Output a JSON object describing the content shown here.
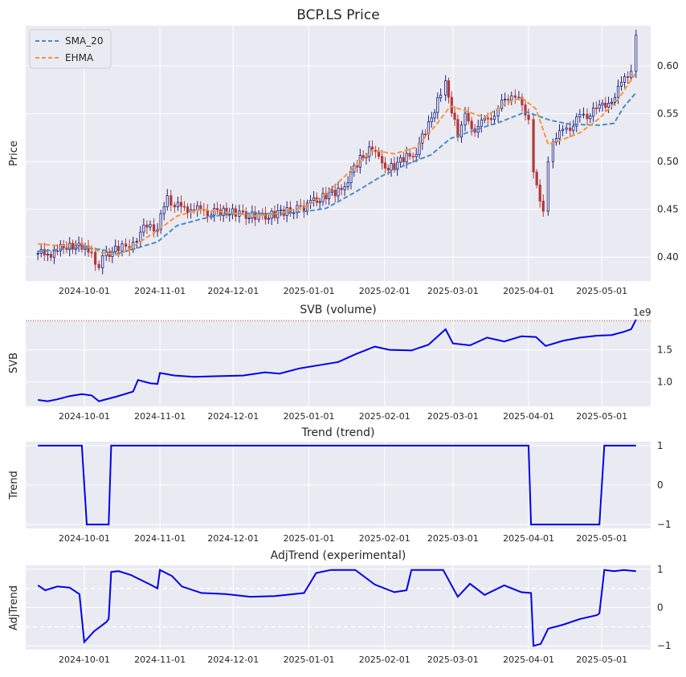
{
  "figure": {
    "colors": {
      "axes_bg": "#eaeaf2",
      "grid": "#ffffff",
      "sma": "#4c8cc4",
      "ehma": "#f7953e",
      "line": "#0000ee",
      "up": "#1a237e",
      "down": "#b0393b"
    }
  },
  "chart_data": [
    {
      "type": "candlestick",
      "title": "BCP.LS Price",
      "ylabel": "Price",
      "ylim": [
        0.375,
        0.642
      ],
      "yticks": [
        "0.40",
        "0.45",
        "0.50",
        "0.55",
        "0.60"
      ],
      "ytick_values": [
        0.4,
        0.45,
        0.5,
        0.55,
        0.6
      ],
      "xticks": [
        "2024-10-01",
        "2024-11-01",
        "2024-12-01",
        "2025-01-01",
        "2025-02-01",
        "2025-03-01",
        "2025-04-01",
        "2025-05-01"
      ],
      "legend": {
        "placement": "upper-left",
        "entries": [
          "SMA_20",
          "EHMA"
        ]
      },
      "close_series": [
        [
          "2024-09-12",
          0.404
        ],
        [
          "2024-09-16",
          0.403
        ],
        [
          "2024-09-20",
          0.407
        ],
        [
          "2024-09-25",
          0.414
        ],
        [
          "2024-09-30",
          0.409
        ],
        [
          "2024-10-04",
          0.404
        ],
        [
          "2024-10-07",
          0.39
        ],
        [
          "2024-10-10",
          0.404
        ],
        [
          "2024-10-15",
          0.408
        ],
        [
          "2024-10-21",
          0.414
        ],
        [
          "2024-10-24",
          0.428
        ],
        [
          "2024-10-28",
          0.432
        ],
        [
          "2024-10-31",
          0.431
        ],
        [
          "2024-11-04",
          0.462
        ],
        [
          "2024-11-07",
          0.455
        ],
        [
          "2024-11-11",
          0.45
        ],
        [
          "2024-11-15",
          0.452
        ],
        [
          "2024-11-19",
          0.446
        ],
        [
          "2024-11-22",
          0.447
        ],
        [
          "2024-11-27",
          0.448
        ],
        [
          "2024-12-02",
          0.446
        ],
        [
          "2024-12-05",
          0.444
        ],
        [
          "2024-12-10",
          0.443
        ],
        [
          "2024-12-13",
          0.442
        ],
        [
          "2024-12-18",
          0.445
        ],
        [
          "2024-12-23",
          0.448
        ],
        [
          "2024-12-30",
          0.452
        ],
        [
          "2025-01-03",
          0.458
        ],
        [
          "2025-01-08",
          0.465
        ],
        [
          "2025-01-13",
          0.468
        ],
        [
          "2025-01-17",
          0.482
        ],
        [
          "2025-01-22",
          0.502
        ],
        [
          "2025-01-27",
          0.516
        ],
        [
          "2025-01-31",
          0.494
        ],
        [
          "2025-02-05",
          0.496
        ],
        [
          "2025-02-10",
          0.504
        ],
        [
          "2025-02-14",
          0.512
        ],
        [
          "2025-02-19",
          0.537
        ],
        [
          "2025-02-24",
          0.574
        ],
        [
          "2025-02-26",
          0.58
        ],
        [
          "2025-03-03",
          0.53
        ],
        [
          "2025-03-06",
          0.546
        ],
        [
          "2025-03-10",
          0.535
        ],
        [
          "2025-03-14",
          0.541
        ],
        [
          "2025-03-18",
          0.552
        ],
        [
          "2025-03-21",
          0.56
        ],
        [
          "2025-03-25",
          0.573
        ],
        [
          "2025-03-28",
          0.563
        ],
        [
          "2025-04-01",
          0.548
        ],
        [
          "2025-04-03",
          0.485
        ],
        [
          "2025-04-07",
          0.452
        ],
        [
          "2025-04-09",
          0.496
        ],
        [
          "2025-04-11",
          0.524
        ],
        [
          "2025-04-15",
          0.53
        ],
        [
          "2025-04-18",
          0.536
        ],
        [
          "2025-04-22",
          0.546
        ],
        [
          "2025-04-25",
          0.548
        ],
        [
          "2025-04-30",
          0.556
        ],
        [
          "2025-05-05",
          0.565
        ],
        [
          "2025-05-09",
          0.58
        ],
        [
          "2025-05-13",
          0.597
        ],
        [
          "2025-05-15",
          0.632
        ]
      ],
      "series": [
        {
          "name": "SMA_20",
          "points": [
            [
              "2024-09-12",
              0.406
            ],
            [
              "2024-09-20",
              0.408
            ],
            [
              "2024-09-30",
              0.41
            ],
            [
              "2024-10-08",
              0.408
            ],
            [
              "2024-10-15",
              0.404
            ],
            [
              "2024-10-22",
              0.409
            ],
            [
              "2024-10-31",
              0.416
            ],
            [
              "2024-11-08",
              0.433
            ],
            [
              "2024-11-18",
              0.44
            ],
            [
              "2024-11-28",
              0.445
            ],
            [
              "2024-12-10",
              0.446
            ],
            [
              "2024-12-20",
              0.445
            ],
            [
              "2024-12-31",
              0.448
            ],
            [
              "2025-01-08",
              0.451
            ],
            [
              "2025-01-20",
              0.468
            ],
            [
              "2025-01-31",
              0.485
            ],
            [
              "2025-02-10",
              0.497
            ],
            [
              "2025-02-20",
              0.507
            ],
            [
              "2025-02-28",
              0.524
            ],
            [
              "2025-03-10",
              0.533
            ],
            [
              "2025-03-20",
              0.541
            ],
            [
              "2025-03-31",
              0.552
            ],
            [
              "2025-04-10",
              0.543
            ],
            [
              "2025-04-18",
              0.539
            ],
            [
              "2025-04-30",
              0.538
            ],
            [
              "2025-05-06",
              0.54
            ],
            [
              "2025-05-10",
              0.557
            ],
            [
              "2025-05-15",
              0.572
            ]
          ]
        },
        {
          "name": "EHMA",
          "points": [
            [
              "2024-09-12",
              0.414
            ],
            [
              "2024-09-20",
              0.412
            ],
            [
              "2024-09-30",
              0.414
            ],
            [
              "2024-10-08",
              0.405
            ],
            [
              "2024-10-15",
              0.402
            ],
            [
              "2024-10-22",
              0.413
            ],
            [
              "2024-10-31",
              0.428
            ],
            [
              "2024-11-08",
              0.443
            ],
            [
              "2024-11-18",
              0.45
            ],
            [
              "2024-11-28",
              0.447
            ],
            [
              "2024-12-10",
              0.443
            ],
            [
              "2024-12-20",
              0.446
            ],
            [
              "2024-12-31",
              0.453
            ],
            [
              "2025-01-08",
              0.466
            ],
            [
              "2025-01-20",
              0.495
            ],
            [
              "2025-01-27",
              0.512
            ],
            [
              "2025-02-05",
              0.508
            ],
            [
              "2025-02-14",
              0.515
            ],
            [
              "2025-02-22",
              0.538
            ],
            [
              "2025-02-28",
              0.558
            ],
            [
              "2025-03-06",
              0.553
            ],
            [
              "2025-03-14",
              0.546
            ],
            [
              "2025-03-22",
              0.56
            ],
            [
              "2025-03-29",
              0.567
            ],
            [
              "2025-04-04",
              0.555
            ],
            [
              "2025-04-09",
              0.518
            ],
            [
              "2025-04-15",
              0.523
            ],
            [
              "2025-04-22",
              0.53
            ],
            [
              "2025-04-30",
              0.545
            ],
            [
              "2025-05-08",
              0.566
            ],
            [
              "2025-05-15",
              0.593
            ]
          ]
        }
      ]
    },
    {
      "type": "line",
      "title": "SVB (volume)",
      "ylabel": "SVB",
      "offset_text": "1e9",
      "ylim": [
        0.62,
        1.97
      ],
      "yticks": [
        "1.0",
        "1.5"
      ],
      "ytick_values": [
        1.0,
        1.5
      ],
      "xticks": [
        "2024-10-01",
        "2024-11-01",
        "2024-12-01",
        "2025-01-01",
        "2025-02-01",
        "2025-03-01",
        "2025-04-01",
        "2025-05-01"
      ],
      "reference_line": 1.95,
      "series": [
        {
          "name": "",
          "points": [
            [
              "2024-09-12",
              0.72
            ],
            [
              "2024-09-16",
              0.7
            ],
            [
              "2024-09-20",
              0.73
            ],
            [
              "2024-09-25",
              0.78
            ],
            [
              "2024-09-30",
              0.81
            ],
            [
              "2024-10-04",
              0.79
            ],
            [
              "2024-10-07",
              0.7
            ],
            [
              "2024-10-14",
              0.77
            ],
            [
              "2024-10-21",
              0.85
            ],
            [
              "2024-10-23",
              1.03
            ],
            [
              "2024-10-28",
              0.98
            ],
            [
              "2024-10-31",
              0.97
            ],
            [
              "2024-11-01",
              1.14
            ],
            [
              "2024-11-07",
              1.1
            ],
            [
              "2024-11-15",
              1.08
            ],
            [
              "2024-11-25",
              1.09
            ],
            [
              "2024-12-05",
              1.1
            ],
            [
              "2024-12-14",
              1.15
            ],
            [
              "2024-12-20",
              1.13
            ],
            [
              "2024-12-28",
              1.21
            ],
            [
              "2025-01-05",
              1.26
            ],
            [
              "2025-01-13",
              1.31
            ],
            [
              "2025-01-20",
              1.43
            ],
            [
              "2025-01-28",
              1.55
            ],
            [
              "2025-02-03",
              1.5
            ],
            [
              "2025-02-12",
              1.49
            ],
            [
              "2025-02-19",
              1.58
            ],
            [
              "2025-02-26",
              1.82
            ],
            [
              "2025-03-01",
              1.6
            ],
            [
              "2025-03-08",
              1.57
            ],
            [
              "2025-03-15",
              1.69
            ],
            [
              "2025-03-22",
              1.63
            ],
            [
              "2025-03-29",
              1.71
            ],
            [
              "2025-04-04",
              1.7
            ],
            [
              "2025-04-08",
              1.56
            ],
            [
              "2025-04-15",
              1.64
            ],
            [
              "2025-04-22",
              1.69
            ],
            [
              "2025-04-29",
              1.72
            ],
            [
              "2025-05-05",
              1.73
            ],
            [
              "2025-05-10",
              1.78
            ],
            [
              "2025-05-13",
              1.82
            ],
            [
              "2025-05-15",
              1.97
            ]
          ]
        }
      ]
    },
    {
      "type": "line",
      "title": "Trend (trend)",
      "ylabel": "Trend",
      "ylim": [
        -1.1,
        1.1
      ],
      "yticks": [
        "−1",
        "0",
        "1"
      ],
      "ytick_values": [
        -1,
        0,
        1
      ],
      "xticks": [
        "2024-10-01",
        "2024-11-01",
        "2024-12-01",
        "2025-01-01",
        "2025-02-01",
        "2025-03-01",
        "2025-04-01",
        "2025-05-01"
      ],
      "series": [
        {
          "name": "",
          "points": [
            [
              "2024-09-12",
              1
            ],
            [
              "2024-09-30",
              1
            ],
            [
              "2024-10-02",
              -1
            ],
            [
              "2024-10-11",
              -1
            ],
            [
              "2024-10-12",
              1
            ],
            [
              "2025-04-01",
              1
            ],
            [
              "2025-04-02",
              -1
            ],
            [
              "2025-04-30",
              -1
            ],
            [
              "2025-05-02",
              1
            ],
            [
              "2025-05-15",
              1
            ]
          ]
        }
      ]
    },
    {
      "type": "line",
      "title": "AdjTrend (experimental)",
      "ylabel": "AdjTrend",
      "ylim": [
        -1.1,
        1.1
      ],
      "yticks": [
        "−1",
        "0",
        "1"
      ],
      "ytick_values": [
        -1,
        0,
        1
      ],
      "xticks": [
        "2024-10-01",
        "2024-11-01",
        "2024-12-01",
        "2025-01-01",
        "2025-02-01",
        "2025-03-01",
        "2025-04-01",
        "2025-05-01"
      ],
      "reference_lines": [
        0.5,
        -0.5
      ],
      "series": [
        {
          "name": "",
          "points": [
            [
              "2024-09-12",
              0.58
            ],
            [
              "2024-09-15",
              0.45
            ],
            [
              "2024-09-20",
              0.55
            ],
            [
              "2024-09-25",
              0.52
            ],
            [
              "2024-09-29",
              0.35
            ],
            [
              "2024-10-01",
              -0.9
            ],
            [
              "2024-10-05",
              -0.62
            ],
            [
              "2024-10-10",
              -0.38
            ],
            [
              "2024-10-11",
              -0.3
            ],
            [
              "2024-10-12",
              0.93
            ],
            [
              "2024-10-15",
              0.95
            ],
            [
              "2024-10-20",
              0.85
            ],
            [
              "2024-10-28",
              0.6
            ],
            [
              "2024-10-31",
              0.5
            ],
            [
              "2024-11-01",
              0.98
            ],
            [
              "2024-11-06",
              0.82
            ],
            [
              "2024-11-10",
              0.55
            ],
            [
              "2024-11-18",
              0.38
            ],
            [
              "2024-11-28",
              0.35
            ],
            [
              "2024-12-08",
              0.28
            ],
            [
              "2024-12-18",
              0.3
            ],
            [
              "2024-12-30",
              0.38
            ],
            [
              "2025-01-04",
              0.9
            ],
            [
              "2025-01-10",
              0.98
            ],
            [
              "2025-01-20",
              0.98
            ],
            [
              "2025-01-28",
              0.6
            ],
            [
              "2025-02-05",
              0.4
            ],
            [
              "2025-02-10",
              0.45
            ],
            [
              "2025-02-12",
              0.98
            ],
            [
              "2025-02-25",
              0.98
            ],
            [
              "2025-03-03",
              0.28
            ],
            [
              "2025-03-08",
              0.62
            ],
            [
              "2025-03-14",
              0.33
            ],
            [
              "2025-03-22",
              0.58
            ],
            [
              "2025-03-29",
              0.4
            ],
            [
              "2025-04-02",
              0.38
            ],
            [
              "2025-04-03",
              -1.0
            ],
            [
              "2025-04-06",
              -0.95
            ],
            [
              "2025-04-09",
              -0.55
            ],
            [
              "2025-04-15",
              -0.45
            ],
            [
              "2025-04-22",
              -0.3
            ],
            [
              "2025-04-29",
              -0.2
            ],
            [
              "2025-04-30",
              -0.15
            ],
            [
              "2025-05-02",
              0.98
            ],
            [
              "2025-05-06",
              0.95
            ],
            [
              "2025-05-10",
              0.98
            ],
            [
              "2025-05-15",
              0.95
            ]
          ]
        }
      ]
    }
  ]
}
